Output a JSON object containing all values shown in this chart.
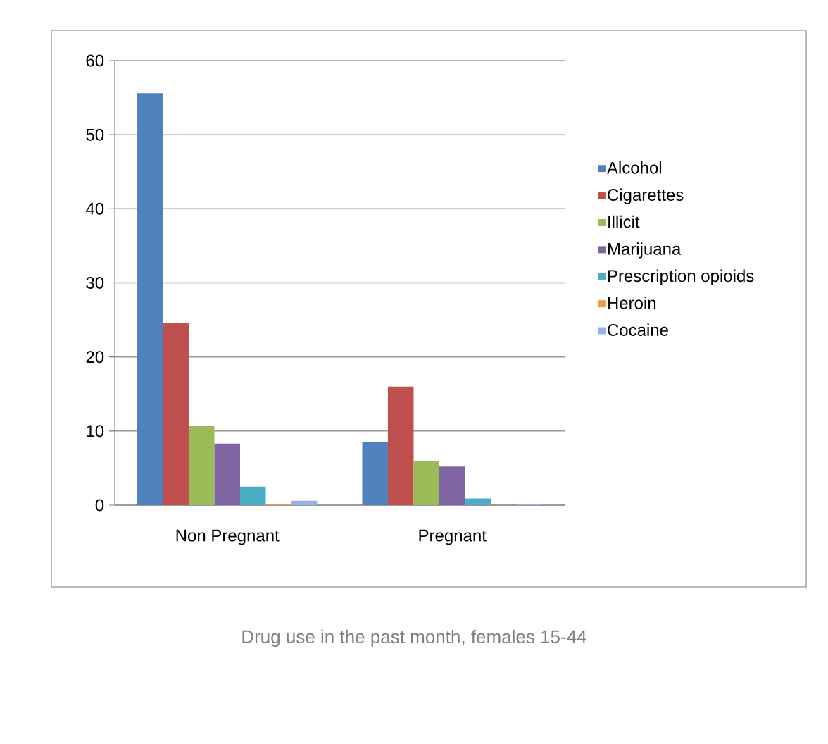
{
  "chart_data": {
    "type": "bar",
    "title": "Drug use in the past month, females 15-44",
    "categories": [
      "Non Pregnant",
      "Pregnant"
    ],
    "series": [
      {
        "name": "Alcohol",
        "color": "#4f81bd",
        "values": [
          55.6,
          8.5
        ]
      },
      {
        "name": "Cigarettes",
        "color": "#c0504d",
        "values": [
          24.6,
          16.0
        ]
      },
      {
        "name": "Illicit",
        "color": "#9bbb59",
        "values": [
          10.7,
          5.9
        ]
      },
      {
        "name": "Marijuana",
        "color": "#8064a2",
        "values": [
          8.3,
          5.2
        ]
      },
      {
        "name": "Prescription opioids",
        "color": "#4bacc6",
        "values": [
          2.5,
          0.9
        ]
      },
      {
        "name": "Heroin",
        "color": "#f79646",
        "values": [
          0.2,
          0
        ]
      },
      {
        "name": "Cocaine",
        "color": "#95b3e8",
        "values": [
          0.6,
          0.1
        ]
      }
    ],
    "ylim": [
      0,
      60
    ],
    "yticks": [
      0,
      10,
      20,
      30,
      40,
      50,
      60
    ],
    "grid": "y",
    "legend": "right"
  }
}
